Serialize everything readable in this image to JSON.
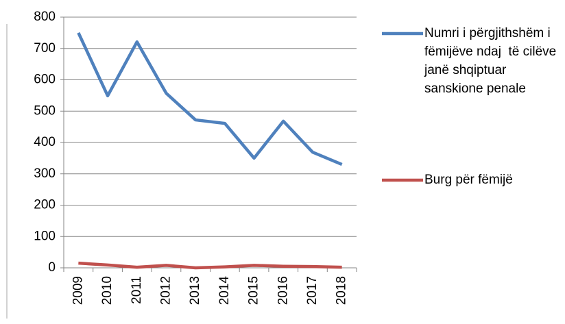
{
  "chart_data": {
    "type": "line",
    "categories": [
      "2009",
      "2010",
      "2011",
      "2012",
      "2013",
      "2014",
      "2015",
      "2016",
      "2017",
      "2018"
    ],
    "series": [
      {
        "name": "Numri i përgjithshëm i fëmijëve ndaj  të cilëve janë shqiptuar sanskione penale",
        "color": "#4f81bd",
        "values": [
          750,
          549,
          721,
          557,
          472,
          461,
          350,
          468,
          369,
          330
        ]
      },
      {
        "name": "Burg për fëmijë",
        "color": "#c0504d",
        "values": [
          15,
          9,
          2,
          8,
          0,
          3,
          8,
          5,
          4,
          2
        ]
      }
    ],
    "ylim": [
      0,
      800
    ],
    "yticks": [
      0,
      100,
      200,
      300,
      400,
      500,
      600,
      700,
      800
    ],
    "grid": true,
    "legend": "right"
  }
}
